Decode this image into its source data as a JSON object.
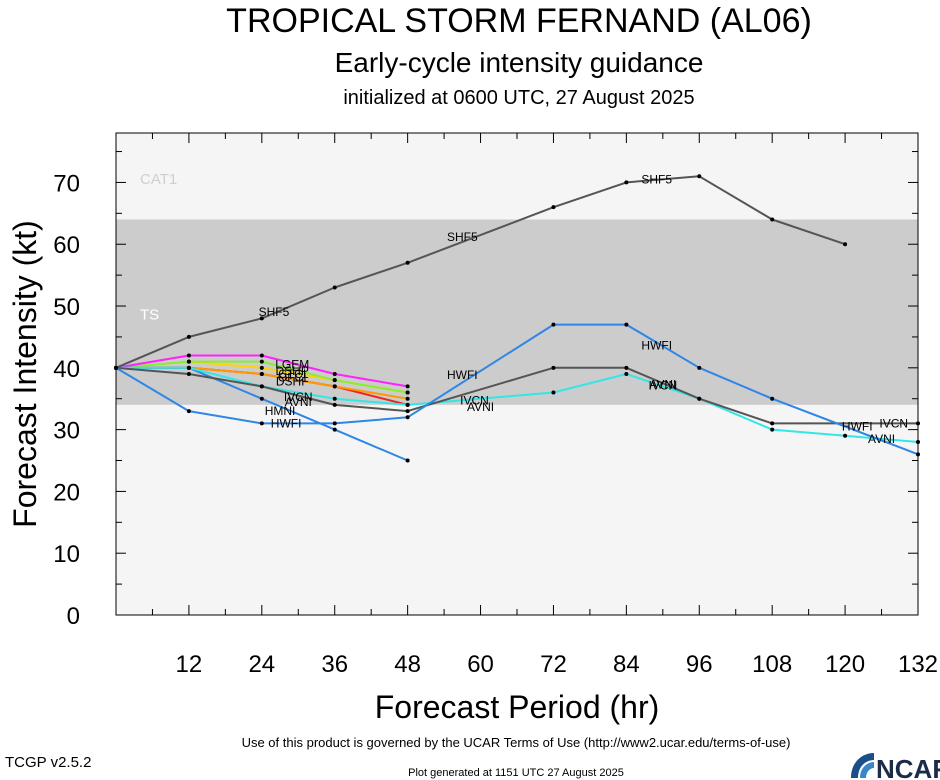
{
  "header": {
    "title": "TROPICAL STORM FERNAND (AL06)",
    "subtitle": "Early-cycle intensity guidance",
    "initialized": "initialized at 0600 UTC, 27 August 2025"
  },
  "footer": {
    "terms": "Use of this product is governed by the UCAR Terms of Use (http://www2.ucar.edu/terms-of-use)",
    "generated": "Plot generated at 1151 UTC   27 August 2025",
    "version": "TCGP v2.5.2",
    "logo_text": "NCAR"
  },
  "colors": {
    "band_ts": "#cccccc",
    "band_outer": "#f5f5f5",
    "frame": "#000000"
  },
  "chart_data": {
    "type": "line",
    "xlabel": "Forecast Period (hr)",
    "ylabel": "Forecast Intensity (kt)",
    "xlim": [
      0,
      132
    ],
    "ylim": [
      0,
      78
    ],
    "xticks": [
      12,
      24,
      36,
      48,
      60,
      72,
      84,
      96,
      108,
      120,
      132
    ],
    "yticks": [
      0,
      10,
      20,
      30,
      40,
      50,
      60,
      70
    ],
    "bands": [
      {
        "label": "CAT1",
        "from": 64,
        "to": 78,
        "color": "#f5f5f5"
      },
      {
        "label": "TS",
        "from": 34,
        "to": 64,
        "color": "#cccccc"
      },
      {
        "label": "",
        "from": 0,
        "to": 34,
        "color": "#f5f5f5"
      }
    ],
    "series": [
      {
        "name": "SHF5",
        "color": "#555555",
        "x": [
          0,
          12,
          24,
          36,
          48,
          72,
          84,
          96,
          108,
          120
        ],
        "y": [
          40,
          45,
          48,
          53,
          57,
          66,
          70,
          71,
          64,
          60
        ]
      },
      {
        "name": "HWFI",
        "color": "#2e86e6",
        "x": [
          0,
          12,
          24,
          36,
          48,
          72,
          84,
          96,
          108,
          132
        ],
        "y": [
          40,
          33,
          31,
          31,
          32,
          47,
          47,
          40,
          35,
          26
        ]
      },
      {
        "name": "IVCN",
        "color": "#555555",
        "x": [
          0,
          12,
          24,
          36,
          48,
          72,
          84,
          96,
          108,
          132
        ],
        "y": [
          40,
          39,
          37,
          34,
          33,
          40,
          40,
          35,
          31,
          31
        ]
      },
      {
        "name": "AVNI",
        "color": "#33e6e6",
        "x": [
          0,
          12,
          24,
          36,
          48,
          72,
          84,
          96,
          108,
          120,
          132
        ],
        "y": [
          40,
          40,
          37,
          35,
          34,
          36,
          39,
          35,
          30,
          29,
          28
        ]
      },
      {
        "name": "HMNI",
        "color": "#2e86e6",
        "x": [
          0,
          12,
          24,
          36,
          48
        ],
        "y": [
          40,
          40,
          35,
          30,
          25
        ]
      },
      {
        "name": "LGEM",
        "color": "#ff22ff",
        "x": [
          0,
          12,
          24,
          36,
          48
        ],
        "y": [
          40,
          42,
          42,
          39,
          37
        ]
      },
      {
        "name": "DSHP",
        "color": "#88ee33",
        "x": [
          0,
          12,
          24,
          36,
          48
        ],
        "y": [
          40,
          41,
          41,
          38,
          36
        ]
      },
      {
        "name": "CTCI",
        "color": "#ffd400",
        "x": [
          0,
          12,
          24,
          36,
          48
        ],
        "y": [
          40,
          41,
          40,
          38,
          36
        ]
      },
      {
        "name": "OFCI",
        "color": "#ff9900",
        "x": [
          0,
          12,
          24,
          36,
          48
        ],
        "y": [
          40,
          40,
          39,
          37,
          35
        ]
      },
      {
        "name": "DSHF",
        "color": "#ee2222",
        "x": [
          0,
          12,
          24,
          36,
          48
        ],
        "y": [
          40,
          40,
          39,
          37,
          34
        ]
      }
    ],
    "labels": [
      {
        "text": "SHF5",
        "series": "SHF5",
        "x": 26,
        "y": 49
      },
      {
        "text": "SHF5",
        "series": "SHF5",
        "x": 57,
        "y": 61.2
      },
      {
        "text": "SHF5",
        "series": "SHF5",
        "x": 89,
        "y": 70.5
      },
      {
        "text": "HWFI",
        "series": "HWFI",
        "x": 28,
        "y": 31
      },
      {
        "text": "HWFI",
        "series": "HWFI",
        "x": 57,
        "y": 38.8
      },
      {
        "text": "HWFI",
        "series": "HWFI",
        "x": 89,
        "y": 43.6
      },
      {
        "text": "HWFI",
        "series": "HWFI",
        "x": 122,
        "y": 30.5
      },
      {
        "text": "IVCN",
        "series": "IVCN",
        "x": 30,
        "y": 35.3
      },
      {
        "text": "IVCN",
        "series": "IVCN",
        "x": 59,
        "y": 34.7
      },
      {
        "text": "IVCN",
        "series": "IVCN",
        "x": 90,
        "y": 37.1
      },
      {
        "text": "IVCN",
        "series": "IVCN",
        "x": 128,
        "y": 31
      },
      {
        "text": "AVNI",
        "series": "AVNI",
        "x": 30,
        "y": 34.5
      },
      {
        "text": "AVNI",
        "series": "AVNI",
        "x": 60,
        "y": 33.7
      },
      {
        "text": "AVNI",
        "series": "AVNI",
        "x": 90,
        "y": 37.3
      },
      {
        "text": "AVNI",
        "series": "AVNI",
        "x": 126,
        "y": 28.5
      },
      {
        "text": "HMNI",
        "series": "HMNI",
        "x": 27,
        "y": 33
      },
      {
        "text": "LGEM",
        "series": "LGEM",
        "x": 29,
        "y": 40.5
      },
      {
        "text": "DSHP",
        "series": "DSHP",
        "x": 29,
        "y": 39.5
      },
      {
        "text": "CTCI",
        "series": "CTCI",
        "x": 29,
        "y": 39
      },
      {
        "text": "OFCI",
        "series": "OFCI",
        "x": 29,
        "y": 38.4
      },
      {
        "text": "DSHF",
        "series": "DSHF",
        "x": 29,
        "y": 37.8
      }
    ]
  }
}
